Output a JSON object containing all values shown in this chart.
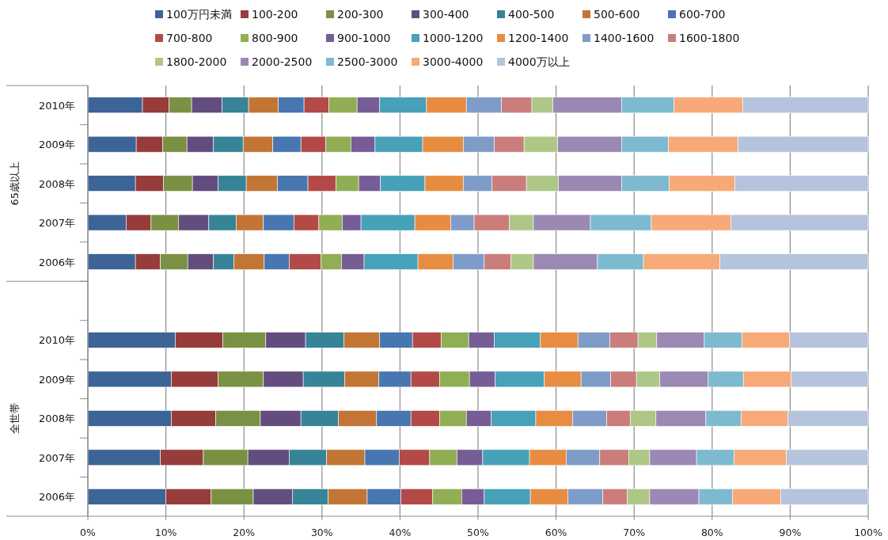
{
  "chart_data": {
    "type": "bar",
    "orientation": "horizontal",
    "stacked": true,
    "grid": "x",
    "legend": "top",
    "categories": [
      "2010年",
      "2009年",
      "2008年",
      "2007年",
      "2006年",
      null,
      "2010年",
      "2009年",
      "2008年",
      "2007年",
      "2006年"
    ],
    "annotations": [
      "65歳以上",
      "全世帯"
    ],
    "xlim": [
      0,
      100
    ],
    "xticks": [
      {
        "value": 0,
        "label": "0%"
      },
      {
        "value": 10,
        "label": "10%"
      },
      {
        "value": 20,
        "label": "20%"
      },
      {
        "value": 30,
        "label": "30%"
      },
      {
        "value": 40,
        "label": "40%"
      },
      {
        "value": 50,
        "label": "50%"
      },
      {
        "value": 60,
        "label": "60%"
      },
      {
        "value": 70,
        "label": "70%"
      },
      {
        "value": 80,
        "label": "80%"
      },
      {
        "value": 90,
        "label": "90%"
      },
      {
        "value": 100,
        "label": "100%"
      }
    ],
    "series": [
      {
        "name": "100万円未満",
        "color": "#3c6496",
        "values": [
          7.0,
          6.2,
          6.1,
          4.9,
          6.1,
          null,
          11.2,
          10.7,
          10.7,
          9.3,
          10.0
        ]
      },
      {
        "name": "100-200",
        "color": "#963c3a",
        "values": [
          3.4,
          3.4,
          3.6,
          3.2,
          3.2,
          null,
          6.1,
          6.0,
          5.7,
          5.5,
          5.8
        ]
      },
      {
        "name": "200-300",
        "color": "#7a9143",
        "values": [
          2.9,
          3.1,
          3.7,
          3.5,
          3.5,
          null,
          5.5,
          5.8,
          5.7,
          5.7,
          5.4
        ]
      },
      {
        "name": "300-400",
        "color": "#634d7e",
        "values": [
          3.9,
          3.4,
          3.3,
          3.9,
          3.3,
          null,
          5.1,
          5.1,
          5.2,
          5.3,
          5.0
        ]
      },
      {
        "name": "400-500",
        "color": "#378498",
        "values": [
          3.4,
          3.8,
          3.6,
          3.5,
          2.6,
          null,
          4.9,
          5.3,
          4.8,
          4.8,
          4.6
        ]
      },
      {
        "name": "500-600",
        "color": "#c27535",
        "values": [
          3.8,
          3.8,
          4.0,
          3.5,
          3.9,
          null,
          4.6,
          4.4,
          4.9,
          4.9,
          5.0
        ]
      },
      {
        "name": "600-700",
        "color": "#4776b0",
        "values": [
          3.3,
          3.6,
          3.9,
          3.9,
          3.2,
          null,
          4.2,
          4.1,
          4.4,
          4.4,
          4.3
        ]
      },
      {
        "name": "700-800",
        "color": "#b34a47",
        "values": [
          3.2,
          3.2,
          3.6,
          3.2,
          4.1,
          null,
          3.7,
          3.7,
          3.7,
          3.9,
          4.1
        ]
      },
      {
        "name": "800-900",
        "color": "#90ae53",
        "values": [
          3.6,
          3.2,
          2.9,
          3.0,
          2.6,
          null,
          3.5,
          3.8,
          3.4,
          3.5,
          3.7
        ]
      },
      {
        "name": "900-1000",
        "color": "#775d96",
        "values": [
          2.9,
          3.1,
          2.8,
          2.4,
          2.9,
          null,
          3.3,
          3.3,
          3.2,
          3.3,
          2.9
        ]
      },
      {
        "name": "1000-1200",
        "color": "#46a1b9",
        "values": [
          6.0,
          6.1,
          5.7,
          6.9,
          6.9,
          null,
          5.9,
          6.3,
          5.7,
          6.0,
          5.9
        ]
      },
      {
        "name": "1200-1400",
        "color": "#e88c41",
        "values": [
          5.1,
          5.2,
          4.9,
          4.6,
          4.5,
          null,
          4.8,
          4.7,
          4.7,
          4.7,
          4.8
        ]
      },
      {
        "name": "1400-1600",
        "color": "#7f9cc8",
        "values": [
          4.5,
          4.0,
          3.7,
          3.0,
          4.0,
          null,
          4.1,
          3.8,
          4.4,
          4.3,
          4.5
        ]
      },
      {
        "name": "1600-1800",
        "color": "#ca7d7b",
        "values": [
          3.9,
          3.8,
          4.4,
          4.5,
          3.4,
          null,
          3.6,
          3.3,
          3.0,
          3.7,
          3.1
        ]
      },
      {
        "name": "1800-2000",
        "color": "#aec786",
        "values": [
          2.7,
          4.3,
          4.1,
          3.1,
          2.9,
          null,
          2.4,
          3.0,
          3.3,
          2.7,
          2.9
        ]
      },
      {
        "name": "2000-2500",
        "color": "#9b89b3",
        "values": [
          8.8,
          8.2,
          8.1,
          7.3,
          8.2,
          null,
          6.1,
          6.2,
          6.4,
          6.0,
          6.3
        ]
      },
      {
        "name": "2500-3000",
        "color": "#7dbad0",
        "values": [
          6.7,
          6.0,
          6.1,
          7.8,
          5.9,
          null,
          4.8,
          4.5,
          4.5,
          4.8,
          4.3
        ]
      },
      {
        "name": "3000-4000",
        "color": "#f7aa78",
        "values": [
          8.8,
          8.9,
          8.4,
          10.2,
          9.8,
          null,
          6.1,
          6.1,
          6.0,
          6.7,
          6.2
        ]
      },
      {
        "name": "4000万以上",
        "color": "#b5c3dd",
        "values": [
          16.1,
          16.7,
          17.1,
          17.6,
          19.0,
          null,
          10.1,
          9.9,
          10.3,
          10.5,
          11.2
        ]
      }
    ]
  }
}
